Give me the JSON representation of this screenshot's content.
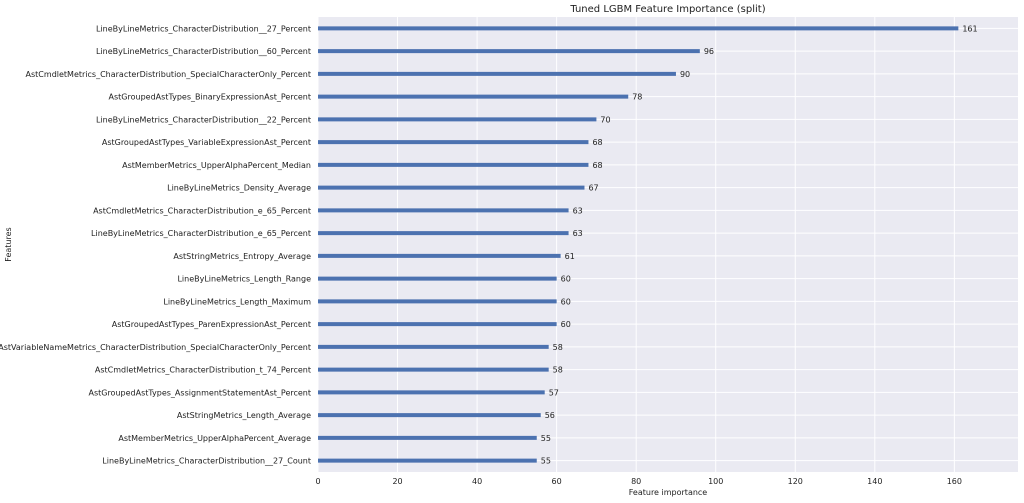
{
  "chart_data": {
    "type": "bar",
    "orientation": "horizontal",
    "title": "Tuned LGBM Feature Importance (split)",
    "xlabel": "Feature importance",
    "ylabel": "Features",
    "xlim": [
      0,
      176
    ],
    "xticks": [
      0,
      20,
      40,
      60,
      80,
      100,
      120,
      140,
      160
    ],
    "grid": true,
    "bar_color": "#4c72b0",
    "background_color": "#eaeaf2",
    "categories": [
      "LineByLineMetrics_CharacterDistribution__27_Percent",
      "LineByLineMetrics_CharacterDistribution__60_Percent",
      "AstCmdletMetrics_CharacterDistribution_SpecialCharacterOnly_Percent",
      "AstGroupedAstTypes_BinaryExpressionAst_Percent",
      "LineByLineMetrics_CharacterDistribution__22_Percent",
      "AstGroupedAstTypes_VariableExpressionAst_Percent",
      "AstMemberMetrics_UpperAlphaPercent_Median",
      "LineByLineMetrics_Density_Average",
      "AstCmdletMetrics_CharacterDistribution_e_65_Percent",
      "LineByLineMetrics_CharacterDistribution_e_65_Percent",
      "AstStringMetrics_Entropy_Average",
      "LineByLineMetrics_Length_Range",
      "LineByLineMetrics_Length_Maximum",
      "AstGroupedAstTypes_ParenExpressionAst_Percent",
      "AstVariableNameMetrics_CharacterDistribution_SpecialCharacterOnly_Percent",
      "AstCmdletMetrics_CharacterDistribution_t_74_Percent",
      "AstGroupedAstTypes_AssignmentStatementAst_Percent",
      "AstStringMetrics_Length_Average",
      "AstMemberMetrics_UpperAlphaPercent_Average",
      "LineByLineMetrics_CharacterDistribution__27_Count"
    ],
    "values": [
      161,
      96,
      90,
      78,
      70,
      68,
      68,
      67,
      63,
      63,
      61,
      60,
      60,
      60,
      58,
      58,
      57,
      56,
      55,
      55
    ]
  }
}
